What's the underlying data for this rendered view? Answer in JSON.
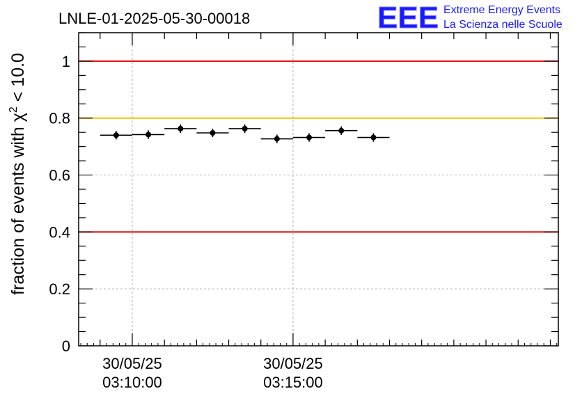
{
  "title": "LNLE-01-2025-05-30-00018",
  "logo": {
    "mark": "EEE",
    "line1": "Extreme Energy Events",
    "line2": "La Scienza nelle Scuole"
  },
  "chart_data": {
    "type": "scatter",
    "title": "LNLE-01-2025-05-30-00018",
    "xlabel": "",
    "ylabel_prefix": "fraction of events with ",
    "ylabel_symbol": "χ",
    "ylabel_exp": "2",
    "ylabel_suffix": " < 10.0",
    "ylim": [
      0,
      1.1
    ],
    "yticks": [
      0,
      0.2,
      0.4,
      0.6,
      0.8,
      1
    ],
    "ytick_labels": [
      "0",
      "0.2",
      "0.4",
      "0.6",
      "0.8",
      "1"
    ],
    "xlim_seconds": [
      -100,
      795
    ],
    "xticks_major": [
      {
        "t": 0,
        "date": "30/05/25",
        "time": "03:10:00"
      },
      {
        "t": 300,
        "date": "30/05/25",
        "time": "03:15:00"
      }
    ],
    "grid": true,
    "reference_lines": [
      {
        "y": 1.0,
        "color": "#e00000"
      },
      {
        "y": 0.8,
        "color": "#ffc000"
      },
      {
        "y": 0.4,
        "color": "#e00000"
      }
    ],
    "bin_width_seconds": 60,
    "points": [
      {
        "x_start": -60,
        "y": 0.74,
        "err": 0.015
      },
      {
        "x_start": 0,
        "y": 0.742,
        "err": 0.015
      },
      {
        "x_start": 60,
        "y": 0.763,
        "err": 0.015
      },
      {
        "x_start": 120,
        "y": 0.748,
        "err": 0.015
      },
      {
        "x_start": 180,
        "y": 0.763,
        "err": 0.015
      },
      {
        "x_start": 240,
        "y": 0.727,
        "err": 0.015
      },
      {
        "x_start": 300,
        "y": 0.732,
        "err": 0.015
      },
      {
        "x_start": 360,
        "y": 0.756,
        "err": 0.015
      },
      {
        "x_start": 420,
        "y": 0.732,
        "err": 0.015
      }
    ]
  }
}
